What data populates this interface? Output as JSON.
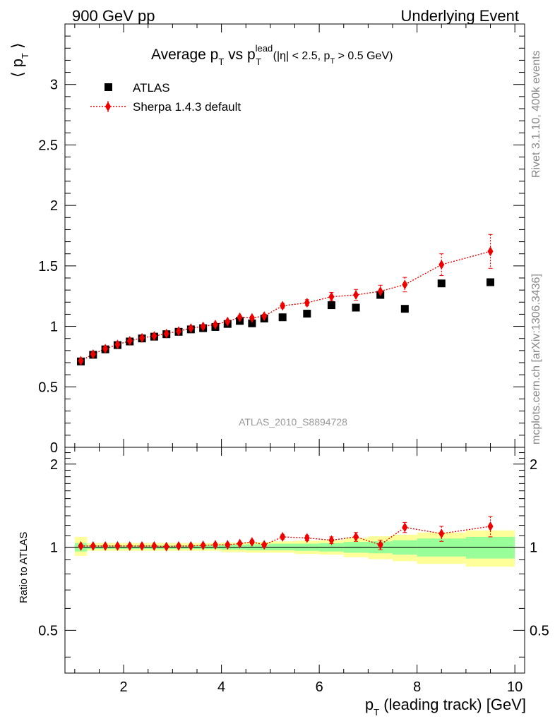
{
  "header": {
    "left": "900 GeV pp",
    "right": "Underlying Event"
  },
  "side_labels": {
    "rivet": "Rivet 3.1.10,  400k events",
    "mcplots": "mcplots.cern.ch [arXiv:1306.3436]"
  },
  "chart_data": {
    "type": "scatter",
    "title": {
      "main": "Average p",
      "main_sub": "T",
      "vs": " vs p",
      "vs_sup": "lead",
      "vs_sub": "T",
      "cut_open": " (|η| < 2.5, p",
      "cut_sub": "T",
      "cut_close": " > 0.5 GeV)"
    },
    "analysis_label": "ATLAS_2010_S8894728",
    "xlabel": {
      "main": "p",
      "sub": "T",
      "rest": " (leading track) [GeV]"
    },
    "ylabel_top": {
      "main": "⟨ p",
      "sub": "T",
      "close": " ⟩"
    },
    "ylabel_bottom": "Ratio to ATLAS",
    "xlim": [
      0.8,
      10.2
    ],
    "ylim_top": [
      0,
      3.5
    ],
    "ylim_bottom": [
      0.35,
      2.3
    ],
    "ratio_scale": "log",
    "x_ticks": [
      "2",
      "4",
      "6",
      "8",
      "10"
    ],
    "y_ticks_top": [
      "0",
      "0.5",
      "1",
      "1.5",
      "2",
      "2.5",
      "3"
    ],
    "y_ticks_bottom": [
      "0.5",
      "1",
      "2"
    ],
    "legend_position": "top-left",
    "colors": {
      "data": "#000000",
      "mc": "#ee0000",
      "band_inner": "#99ff99",
      "band_outer": "#ffff99"
    },
    "series": [
      {
        "name": "ATLAS",
        "style": "square",
        "x": [
          1.125,
          1.375,
          1.625,
          1.875,
          2.125,
          2.375,
          2.625,
          2.875,
          3.125,
          3.375,
          3.625,
          3.875,
          4.125,
          4.375,
          4.625,
          4.875,
          5.25,
          5.75,
          6.25,
          6.75,
          7.25,
          7.75,
          8.5,
          9.5
        ],
        "y": [
          0.71,
          0.765,
          0.81,
          0.845,
          0.875,
          0.9,
          0.915,
          0.935,
          0.955,
          0.975,
          0.985,
          0.995,
          1.02,
          1.045,
          1.025,
          1.065,
          1.075,
          1.105,
          1.175,
          1.155,
          1.26,
          1.145,
          1.355,
          1.365
        ]
      },
      {
        "name": "Sherpa 1.4.3 default",
        "style": "diamond-dotted-line",
        "x": [
          1.125,
          1.375,
          1.625,
          1.875,
          2.125,
          2.375,
          2.625,
          2.875,
          3.125,
          3.375,
          3.625,
          3.875,
          4.125,
          4.375,
          4.625,
          4.875,
          5.25,
          5.75,
          6.25,
          6.75,
          7.25,
          7.75,
          8.5,
          9.5
        ],
        "y": [
          0.715,
          0.77,
          0.815,
          0.85,
          0.88,
          0.905,
          0.92,
          0.94,
          0.96,
          0.985,
          1.0,
          1.015,
          1.04,
          1.075,
          1.07,
          1.085,
          1.17,
          1.195,
          1.245,
          1.26,
          1.29,
          1.345,
          1.51,
          1.62
        ],
        "yerr": [
          0.005,
          0.005,
          0.005,
          0.005,
          0.005,
          0.005,
          0.006,
          0.006,
          0.007,
          0.007,
          0.008,
          0.009,
          0.01,
          0.012,
          0.013,
          0.015,
          0.02,
          0.025,
          0.035,
          0.045,
          0.05,
          0.06,
          0.09,
          0.14
        ]
      }
    ],
    "ratio": {
      "x": [
        1.125,
        1.375,
        1.625,
        1.875,
        2.125,
        2.375,
        2.625,
        2.875,
        3.125,
        3.375,
        3.625,
        3.875,
        4.125,
        4.375,
        4.625,
        4.875,
        5.25,
        5.75,
        6.25,
        6.75,
        7.25,
        7.75,
        8.5,
        9.5
      ],
      "y": [
        1.01,
        1.01,
        1.01,
        1.01,
        1.01,
        1.01,
        1.01,
        1.005,
        1.01,
        1.01,
        1.015,
        1.02,
        1.02,
        1.03,
        1.045,
        1.02,
        1.09,
        1.08,
        1.06,
        1.09,
        1.02,
        1.18,
        1.12,
        1.19
      ],
      "yerr": [
        0.01,
        0.01,
        0.01,
        0.01,
        0.01,
        0.01,
        0.01,
        0.01,
        0.01,
        0.01,
        0.01,
        0.01,
        0.012,
        0.012,
        0.015,
        0.015,
        0.02,
        0.025,
        0.03,
        0.04,
        0.04,
        0.05,
        0.07,
        0.1
      ],
      "bands": [
        {
          "x0": 1.0,
          "x1": 1.25,
          "inner": [
            0.965,
            1.035
          ],
          "outer": [
            0.93,
            1.09
          ]
        },
        {
          "x0": 1.25,
          "x1": 4.0,
          "inner": [
            0.985,
            1.015
          ],
          "outer": [
            0.97,
            1.035
          ]
        },
        {
          "x0": 4.0,
          "x1": 4.5,
          "inner": [
            0.98,
            1.02
          ],
          "outer": [
            0.96,
            1.04
          ]
        },
        {
          "x0": 4.5,
          "x1": 5.0,
          "inner": [
            0.975,
            1.025
          ],
          "outer": [
            0.955,
            1.045
          ]
        },
        {
          "x0": 5.0,
          "x1": 5.5,
          "inner": [
            0.975,
            1.03
          ],
          "outer": [
            0.955,
            1.05
          ]
        },
        {
          "x0": 5.5,
          "x1": 6.0,
          "inner": [
            0.97,
            1.03
          ],
          "outer": [
            0.945,
            1.055
          ]
        },
        {
          "x0": 6.0,
          "x1": 6.5,
          "inner": [
            0.965,
            1.035
          ],
          "outer": [
            0.94,
            1.06
          ]
        },
        {
          "x0": 6.5,
          "x1": 7.0,
          "inner": [
            0.955,
            1.045
          ],
          "outer": [
            0.92,
            1.08
          ]
        },
        {
          "x0": 7.0,
          "x1": 7.5,
          "inner": [
            0.95,
            1.05
          ],
          "outer": [
            0.905,
            1.095
          ]
        },
        {
          "x0": 7.5,
          "x1": 8.0,
          "inner": [
            0.94,
            1.06
          ],
          "outer": [
            0.89,
            1.11
          ]
        },
        {
          "x0": 8.0,
          "x1": 9.0,
          "inner": [
            0.925,
            1.075
          ],
          "outer": [
            0.87,
            1.13
          ]
        },
        {
          "x0": 9.0,
          "x1": 10.0,
          "inner": [
            0.91,
            1.09
          ],
          "outer": [
            0.85,
            1.15
          ]
        }
      ]
    }
  }
}
